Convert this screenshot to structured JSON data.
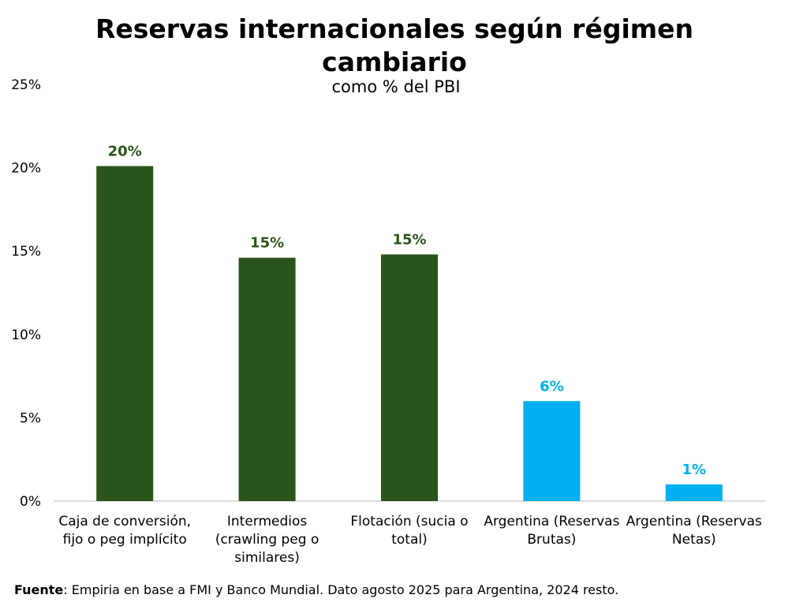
{
  "chart_data": {
    "type": "bar",
    "title": "Reservas internacionales según régimen cambiario",
    "subtitle": "como % del PBI",
    "xlabel": "",
    "ylabel": "",
    "ylim": [
      0,
      25
    ],
    "yticks": [
      0,
      5,
      10,
      15,
      20,
      25
    ],
    "ytick_labels": [
      "0%",
      "5%",
      "10%",
      "15%",
      "20%",
      "25%"
    ],
    "grid": false,
    "categories": [
      [
        "Caja de conversión,",
        "fijo o peg implícito"
      ],
      [
        "Intermedios",
        "(crawling peg o",
        "similares)"
      ],
      [
        "Flotación (sucia o",
        "total)"
      ],
      [
        "Argentina (Reservas",
        "Brutas)"
      ],
      [
        "Argentina (Reservas",
        "Netas)"
      ]
    ],
    "values": [
      20.1,
      14.6,
      14.8,
      6.0,
      1.0
    ],
    "data_labels": [
      "20%",
      "15%",
      "15%",
      "6%",
      "1%"
    ],
    "colors": [
      "#2a5419",
      "#2a5419",
      "#2a5419",
      "#00b0f0",
      "#00b0f0"
    ]
  },
  "footer": {
    "source_label": "Fuente",
    "source_text": ": Empiria en base a FMI y Banco Mundial. Dato agosto 2025 para Argentina, 2024 resto."
  }
}
